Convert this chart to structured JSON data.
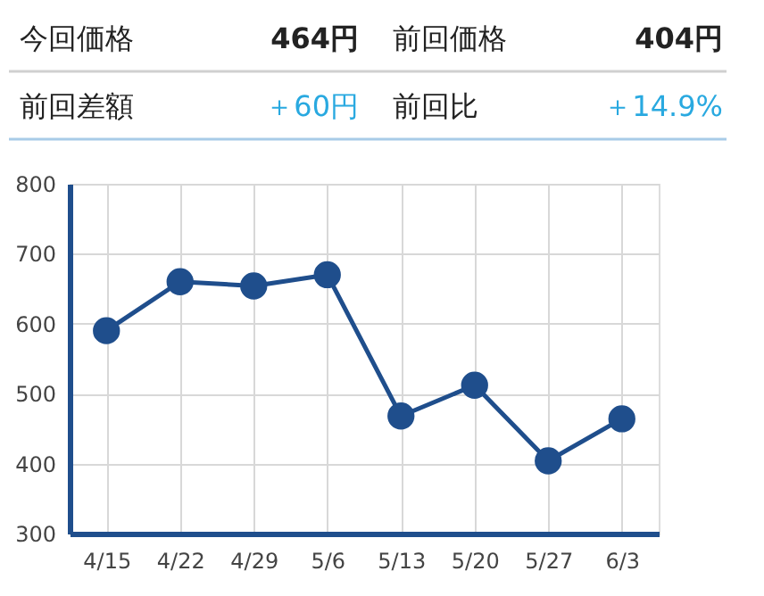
{
  "chart_data": {
    "type": "line",
    "annotations": [
      "今回価格",
      "464円",
      "前回価格",
      "404円",
      "前回差額",
      "＋60円",
      "前回比",
      "＋14.9%"
    ],
    "categories": [
      "4/15",
      "4/22",
      "4/29",
      "5/6",
      "5/13",
      "5/20",
      "5/27",
      "6/3"
    ],
    "series": [
      {
        "color": "#1f4e8c",
        "values": [
          590,
          660,
          654,
          670,
          468,
          512,
          404,
          464
        ]
      }
    ],
    "ylim": [
      300,
      800
    ],
    "yticks": [
      300,
      400,
      500,
      600,
      700,
      800
    ],
    "grid": true,
    "marker": "circle",
    "line_style": "solid",
    "legend": false
  }
}
